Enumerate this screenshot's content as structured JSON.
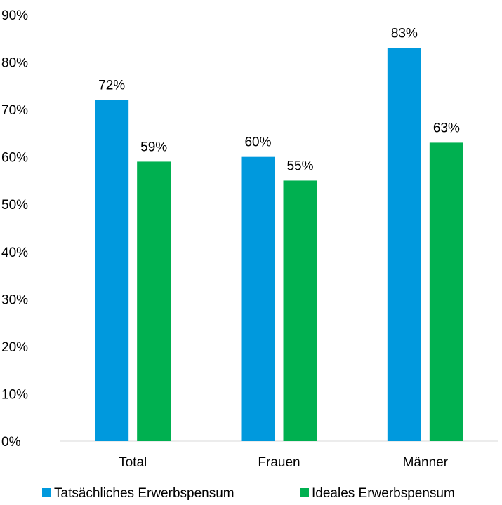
{
  "chart_data": {
    "type": "bar",
    "categories": [
      "Total",
      "Frauen",
      "Männer"
    ],
    "series": [
      {
        "name": "Tatsächliches Erwerbspensum",
        "values": [
          72,
          60,
          83
        ],
        "labels": [
          "72%",
          "60%",
          "83%"
        ],
        "color": "#0099dd"
      },
      {
        "name": "Ideales Erwerbspensum",
        "values": [
          59,
          55,
          63
        ],
        "labels": [
          "59%",
          "55%",
          "63%"
        ],
        "color": "#00b050"
      }
    ],
    "yticks": [
      "0%",
      "10%",
      "20%",
      "30%",
      "40%",
      "50%",
      "60%",
      "70%",
      "80%",
      "90%"
    ],
    "ylim": [
      0,
      90
    ],
    "y_unit": "%",
    "grid": false,
    "legend_position": "bottom",
    "title": "",
    "xlabel": "",
    "ylabel": ""
  }
}
